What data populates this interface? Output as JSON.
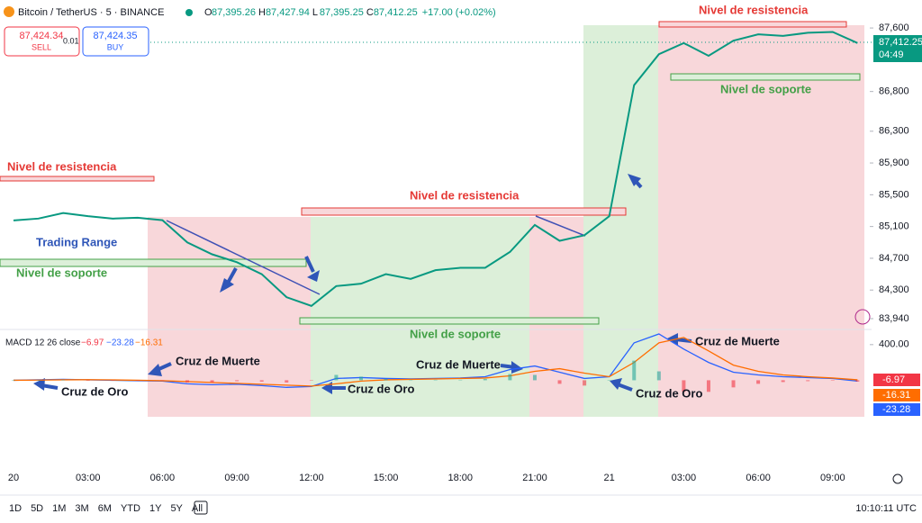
{
  "header": {
    "symbol": "Bitcoin / TetherUS · 5 · BINANCE",
    "ohlc": [
      {
        "label": "O",
        "value": "87,395.26"
      },
      {
        "label": "H",
        "value": "87,427.94"
      },
      {
        "label": "L",
        "value": "87,395.25"
      },
      {
        "label": "C",
        "value": "87,412.25"
      }
    ],
    "change": "+17.00 (+0.02%)"
  },
  "order": {
    "sell_price": "87,424.34",
    "sell": "SELL",
    "spread": "0.01",
    "buy_price": "87,424.35",
    "buy": "BUY"
  },
  "toolbar": {
    "ranges": [
      "1D",
      "5D",
      "1M",
      "3M",
      "6M",
      "YTD",
      "1Y",
      "5Y",
      "All"
    ],
    "clock": "10:10:11 UTC"
  },
  "chart_data": [
    {
      "type": "line",
      "categories": [
        "20",
        null,
        null,
        "03:00",
        null,
        null,
        "06:00",
        null,
        null,
        "09:00",
        null,
        null,
        "12:00",
        null,
        null,
        "15:00",
        null,
        null,
        "18:00",
        null,
        null,
        "21:00",
        null,
        null,
        "21",
        null,
        null,
        "03:00",
        null,
        null,
        "06:00",
        null,
        null,
        "09:00",
        null
      ],
      "values": [
        85176,
        85200,
        85270,
        85230,
        85200,
        85210,
        85180,
        84900,
        84750,
        84650,
        84500,
        84210,
        84100,
        84350,
        84380,
        84500,
        84440,
        84550,
        84580,
        84580,
        84780,
        85120,
        84920,
        84990,
        85230,
        86880,
        87270,
        87410,
        87250,
        87440,
        87520,
        87500,
        87540,
        87550,
        87410
      ],
      "color": "#089981",
      "ylim": [
        83815,
        87635
      ],
      "yticks": [
        {
          "value": 87600,
          "label": "87,600"
        },
        {
          "value": 86800,
          "label": "86,800"
        },
        {
          "value": 86300,
          "label": "86,300"
        },
        {
          "value": 85900,
          "label": "85,900"
        },
        {
          "value": 85500,
          "label": "85,500"
        },
        {
          "value": 85100,
          "label": "85,100"
        },
        {
          "value": 84700,
          "label": "84,700"
        },
        {
          "value": 84300,
          "label": "84,300"
        },
        {
          "value": 83940,
          "label": "83,940"
        }
      ],
      "price_tag": "87,412.25",
      "countdown": "04:49",
      "annotations": [
        "Nivel de resistencia",
        "Nivel de soporte",
        "Nivel de resistencia",
        "Trading Range",
        "Nivel de soporte",
        "Nivel de resistencia",
        "Nivel de soporte"
      ]
    },
    {
      "type": "macd",
      "title": "MACD 12 26 close",
      "legend_values": [
        "−6.97",
        "−23.28",
        "−16.31"
      ],
      "last_labels": [
        "-6.97",
        "-16.31",
        "-23.28"
      ],
      "series": [
        {
          "color": "#2962ff",
          "values": [
            0,
            5,
            10,
            5,
            0,
            -5,
            -10,
            -40,
            -50,
            -45,
            -60,
            -80,
            -70,
            20,
            30,
            20,
            15,
            20,
            25,
            40,
            120,
            160,
            90,
            20,
            40,
            420,
            520,
            350,
            200,
            90,
            60,
            40,
            30,
            20,
            -10
          ]
        },
        {
          "color": "#ff6d00",
          "values": [
            0,
            2,
            5,
            6,
            4,
            0,
            -5,
            -15,
            -25,
            -35,
            -45,
            -55,
            -65,
            -40,
            -10,
            5,
            10,
            15,
            20,
            25,
            50,
            100,
            130,
            80,
            40,
            200,
            420,
            480,
            330,
            170,
            100,
            60,
            40,
            25,
            5
          ]
        },
        {
          "type": "bar",
          "color": "#26a69a",
          "values": [
            0,
            3,
            5,
            -1,
            -4,
            -5,
            -5,
            -25,
            -25,
            -10,
            -15,
            -25,
            -5,
            60,
            40,
            15,
            5,
            5,
            5,
            15,
            70,
            60,
            -40,
            -60,
            0,
            220,
            100,
            -130,
            -130,
            -80,
            -40,
            -20,
            -10,
            -5,
            -15
          ]
        }
      ],
      "ylim": [
        -400,
        550
      ],
      "yticks": [
        {
          "value": 400,
          "label": "400.00"
        }
      ],
      "annotations": [
        "Cruz de Muerte",
        "Cruz de Oro",
        "Cruz de Muerte",
        "Cruz de Oro",
        "Cruz de Muerte",
        "Cruz de Oro"
      ]
    }
  ]
}
